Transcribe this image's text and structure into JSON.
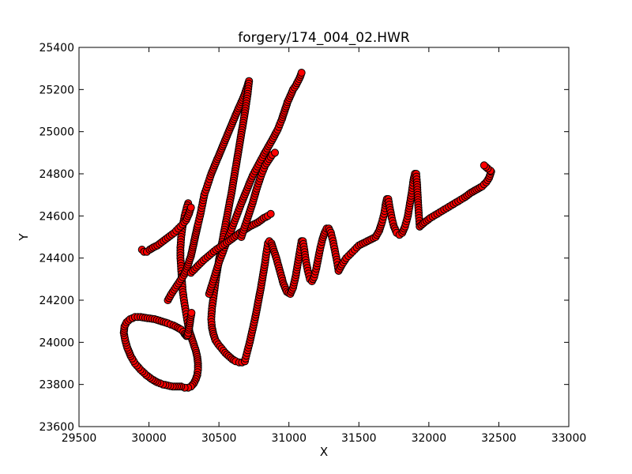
{
  "chart_data": {
    "type": "scatter",
    "title": "forgery/174_004_02.HWR",
    "xlabel": "X",
    "ylabel": "Y",
    "xlim": [
      29500,
      33000
    ],
    "ylim": [
      23600,
      25400
    ],
    "xticks": [
      29500,
      30000,
      30500,
      31000,
      31500,
      32000,
      32500,
      33000
    ],
    "yticks": [
      23600,
      23800,
      24000,
      24200,
      24400,
      24600,
      24800,
      25000,
      25200,
      25400
    ],
    "grid": false,
    "legend": "none",
    "line_color": "#ff0000",
    "marker_fill": "#ff0000",
    "marker_edge": "#000000",
    "series": [
      {
        "stroke": "J-top-and-loop",
        "x": [
          30280,
          30270,
          30255,
          30240,
          30230,
          30225,
          30225,
          30230,
          30235,
          30240,
          30250,
          30260,
          30270,
          30280,
          30290,
          30305,
          30320,
          30335,
          30345,
          30350,
          30350,
          30345,
          30335,
          30320,
          30300,
          30280,
          30255,
          30230,
          30200,
          30170,
          30135,
          30100,
          30060,
          30020,
          29980,
          29940,
          29900,
          29870,
          29845,
          29830,
          29820,
          29825,
          29840,
          29865,
          29900,
          29940,
          29990,
          30040,
          30090,
          30135,
          30175,
          30205,
          30230,
          30245,
          30255,
          30262,
          30268,
          30272,
          30276,
          30280,
          30284,
          30290,
          30296,
          30304
        ],
        "y": [
          24660,
          24640,
          24600,
          24550,
          24500,
          24450,
          24400,
          24350,
          24300,
          24250,
          24200,
          24160,
          24120,
          24080,
          24050,
          24020,
          23990,
          23960,
          23930,
          23900,
          23870,
          23845,
          23825,
          23805,
          23790,
          23785,
          23785,
          23790,
          23790,
          23790,
          23795,
          23800,
          23810,
          23825,
          23845,
          23870,
          23900,
          23935,
          23975,
          24010,
          24045,
          24075,
          24095,
          24110,
          24120,
          24120,
          24115,
          24110,
          24100,
          24090,
          24080,
          24070,
          24060,
          24050,
          24040,
          24035,
          24030,
          24030,
          24035,
          24045,
          24060,
          24080,
          24110,
          24140
        ]
      },
      {
        "stroke": "J-left-flourish",
        "x": [
          29950,
          29965,
          29985,
          30005,
          30030,
          30060,
          30090,
          30120,
          30150,
          30180,
          30210,
          30240,
          30265,
          30285,
          30300
        ],
        "y": [
          24440,
          24430,
          24430,
          24440,
          24450,
          24460,
          24475,
          24490,
          24505,
          24520,
          24540,
          24560,
          24580,
          24610,
          24640
        ]
      },
      {
        "stroke": "a-stroke",
        "x": [
          30135,
          30160,
          30190,
          30220,
          30250,
          30270,
          30285,
          30300,
          30310,
          30320,
          30330,
          30340,
          30350,
          30365,
          30380,
          30395
        ],
        "y": [
          24200,
          24230,
          24260,
          24290,
          24320,
          24350,
          24380,
          24410,
          24440,
          24470,
          24500,
          24530,
          24560,
          24600,
          24650,
          24700
        ]
      },
      {
        "stroke": "upstroke-to-top",
        "x": [
          30395,
          30420,
          30445,
          30470,
          30495,
          30520,
          30545,
          30570,
          30595,
          30620,
          30640,
          30660,
          30680,
          30695,
          30705,
          30715
        ],
        "y": [
          24700,
          24750,
          24800,
          24840,
          24880,
          24920,
          24960,
          25000,
          25040,
          25080,
          25110,
          25140,
          25170,
          25200,
          25220,
          25240
        ]
      },
      {
        "stroke": "long-downstroke",
        "x": [
          30715,
          30705,
          30690,
          30670,
          30650,
          30630,
          30610,
          30590,
          30570,
          30550,
          30530,
          30510,
          30495,
          30480,
          30470,
          30460,
          30450,
          30445,
          30450,
          30460,
          30475,
          30495,
          30520,
          30545,
          30570,
          30595,
          30620,
          30645,
          30665,
          30685
        ],
        "y": [
          25240,
          25180,
          25110,
          25030,
          24950,
          24870,
          24790,
          24710,
          24640,
          24570,
          24500,
          24430,
          24370,
          24310,
          24260,
          24210,
          24160,
          24110,
          24070,
          24040,
          24010,
          23990,
          23970,
          23950,
          23935,
          23920,
          23910,
          23905,
          23905,
          23910
        ]
      },
      {
        "stroke": "m-loops",
        "x": [
          30685,
          30700,
          30720,
          30740,
          30760,
          30780,
          30800,
          30815,
          30830,
          30840,
          30850,
          30860,
          30875,
          30890,
          30910,
          30935,
          30960,
          30985,
          31010,
          31030,
          31050,
          31065,
          31080,
          31090,
          31100,
          31110,
          31120,
          31135,
          31150,
          31165,
          31180,
          31195,
          31210,
          31225,
          31240,
          31255,
          31270,
          31285,
          31300,
          31315,
          31330,
          31345,
          31355
        ],
        "y": [
          23910,
          23950,
          24000,
          24060,
          24120,
          24190,
          24260,
          24320,
          24380,
          24430,
          24470,
          24480,
          24470,
          24440,
          24400,
          24340,
          24280,
          24240,
          24230,
          24260,
          24320,
          24380,
          24440,
          24480,
          24480,
          24440,
          24390,
          24340,
          24300,
          24290,
          24310,
          24350,
          24400,
          24450,
          24490,
          24520,
          24540,
          24540,
          24520,
          24480,
          24430,
          24380,
          24340
        ]
      },
      {
        "stroke": "e-and-s",
        "x": [
          31355,
          31380,
          31410,
          31440,
          31470,
          31500,
          31530,
          31560,
          31590,
          31620,
          31645,
          31665,
          31680,
          31690,
          31700,
          31710,
          31720,
          31735,
          31750,
          31770,
          31790,
          31810,
          31830,
          31850,
          31865,
          31880,
          31890,
          31900,
          31910,
          31915,
          31920,
          31925,
          31930,
          31935
        ],
        "y": [
          24340,
          24370,
          24400,
          24420,
          24440,
          24460,
          24470,
          24480,
          24490,
          24500,
          24530,
          24570,
          24610,
          24650,
          24680,
          24680,
          24640,
          24590,
          24550,
          24520,
          24510,
          24520,
          24550,
          24600,
          24660,
          24720,
          24770,
          24800,
          24800,
          24760,
          24700,
          24640,
          24590,
          24550
        ]
      },
      {
        "stroke": "tail",
        "x": [
          31935,
          31970,
          32010,
          32060,
          32110,
          32160,
          32210,
          32260,
          32300,
          32340,
          32380,
          32410,
          32430,
          32440,
          32445,
          32440,
          32420,
          32395
        ],
        "y": [
          24550,
          24570,
          24590,
          24610,
          24630,
          24650,
          24670,
          24690,
          24710,
          24725,
          24740,
          24760,
          24780,
          24800,
          24810,
          24815,
          24825,
          24840
        ]
      },
      {
        "stroke": "cross-stroke-1",
        "x": [
          30430,
          30500,
          30580,
          30660,
          30740,
          30820,
          30880,
          30920,
          30950,
          30970,
          30990,
          31010,
          31030,
          31050,
          31065,
          31080,
          31090
        ],
        "y": [
          24230,
          24380,
          24520,
          24660,
          24790,
          24890,
          24960,
          25010,
          25060,
          25100,
          25140,
          25170,
          25200,
          25220,
          25240,
          25260,
          25280
        ]
      },
      {
        "stroke": "cross-stroke-2",
        "x": [
          30300,
          30390,
          30480,
          30570,
          30650,
          30720,
          30780,
          30820,
          30850,
          30870
        ],
        "y": [
          24330,
          24390,
          24440,
          24480,
          24520,
          24550,
          24570,
          24590,
          24600,
          24610
        ]
      },
      {
        "stroke": "cross-stroke-3",
        "x": [
          30660,
          30700,
          30740,
          30770,
          30800,
          30830,
          30860,
          30880,
          30900
        ],
        "y": [
          24500,
          24580,
          24660,
          24730,
          24790,
          24840,
          24870,
          24890,
          24900
        ]
      }
    ]
  }
}
